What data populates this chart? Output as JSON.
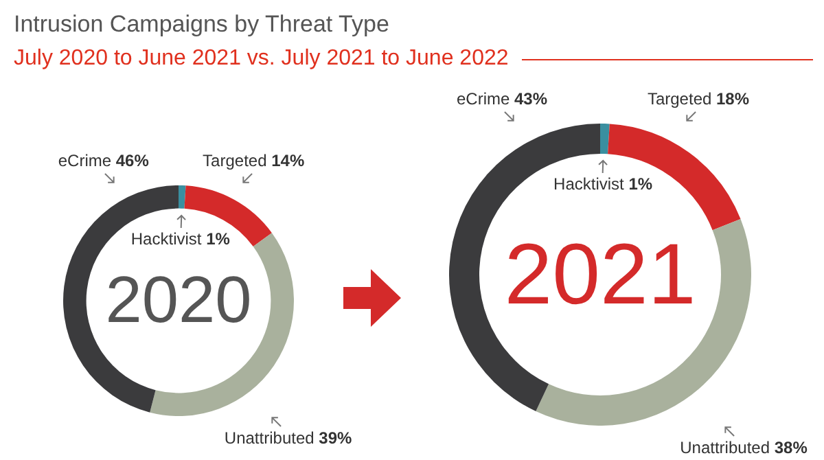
{
  "chart_data": [
    {
      "type": "donut",
      "title": "Intrusion Campaigns by Threat Type",
      "subtitle": "July 2020 to June 2021 vs. July 2021 to June 2022",
      "annotations": [
        "2020"
      ],
      "categories": [
        "Hacktivist",
        "Targeted",
        "Unattributed",
        "eCrime"
      ],
      "values": [
        1,
        14,
        39,
        46
      ],
      "value_labels": [
        "1%",
        "14%",
        "39%",
        "46%"
      ],
      "colors": [
        "#3a8fa0",
        "#d42a2a",
        "#a9b19d",
        "#3b3b3d"
      ]
    },
    {
      "type": "donut",
      "annotations": [
        "2021"
      ],
      "categories": [
        "Hacktivist",
        "Targeted",
        "Unattributed",
        "eCrime"
      ],
      "values": [
        1,
        18,
        38,
        43
      ],
      "value_labels": [
        "1%",
        "18%",
        "38%",
        "43%"
      ],
      "colors": [
        "#3a8fa0",
        "#d42a2a",
        "#a9b19d",
        "#3b3b3d"
      ]
    }
  ]
}
